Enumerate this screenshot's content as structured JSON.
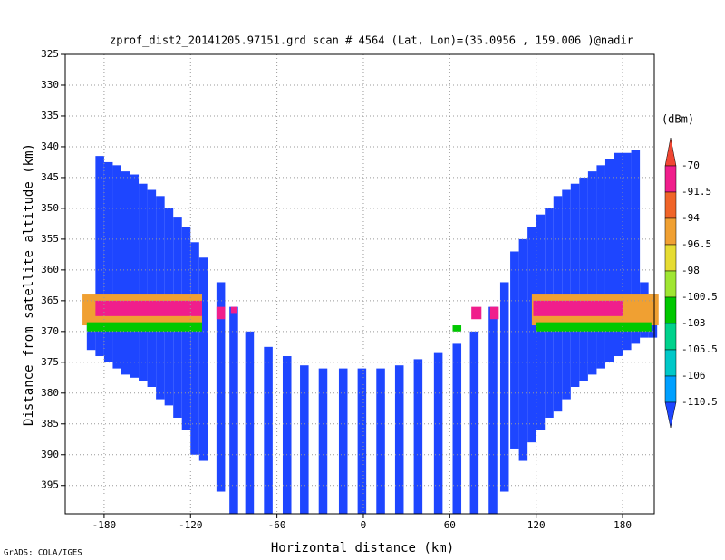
{
  "chart_data": {
    "type": "heatmap",
    "title": "zprof_dist2_20141205.97151.grd  scan # 4564  (Lat, Lon)=(35.0956 , 159.006 )@nadir",
    "xlabel": "Horizontal distance (km)",
    "ylabel": "Distance from satellite altitude (km)",
    "footnote": "GrADS: COLA/IGES",
    "xlim": [
      -207,
      202
    ],
    "ylim": [
      325,
      399.6
    ],
    "xticks": [
      -180,
      -120,
      -60,
      0,
      60,
      120,
      180
    ],
    "yticks": [
      325,
      330,
      335,
      340,
      345,
      350,
      355,
      360,
      365,
      370,
      375,
      380,
      385,
      390,
      395
    ],
    "grid": true,
    "colorbar": {
      "unit": "(dBm)",
      "levels": [
        -70,
        -91.5,
        -94,
        -96.5,
        -98,
        -100.5,
        -103,
        -105.5,
        -106,
        -110.5
      ],
      "colors": [
        "#f04632",
        "#f01e8c",
        "#f06428",
        "#f0a032",
        "#e6dc32",
        "#a0e632",
        "#00c800",
        "#00d28c",
        "#00c8c8",
        "#00a0ff",
        "#1e46ff"
      ]
    },
    "columns": {
      "value": -112,
      "x0": [
        -192,
        -186,
        -180,
        -174,
        -168,
        -162,
        -156,
        -150,
        -144,
        -138,
        -132,
        -126,
        -120,
        -114,
        -102,
        -93,
        -82,
        -69,
        -56,
        -44,
        -31,
        -17,
        -4,
        9,
        22,
        35,
        49,
        62,
        74,
        87,
        95,
        102,
        108,
        114,
        120,
        126,
        132,
        138,
        144,
        150,
        156,
        162,
        168,
        174,
        180,
        186,
        192,
        198
      ],
      "x1": [
        -186,
        -180,
        -174,
        -168,
        -162,
        -156,
        -150,
        -144,
        -138,
        -132,
        -126,
        -120,
        -114,
        -108,
        -96,
        -87,
        -76,
        -63,
        -50,
        -38,
        -25,
        -11,
        2,
        15,
        28,
        41,
        55,
        68,
        80,
        93,
        101,
        108,
        114,
        120,
        126,
        132,
        138,
        144,
        150,
        156,
        162,
        168,
        174,
        180,
        186,
        192,
        198,
        204
      ],
      "top": [
        364.5,
        341.5,
        342.5,
        343,
        344,
        344.5,
        346,
        347,
        348,
        350,
        351.5,
        353,
        355.5,
        358,
        362,
        366,
        370,
        372.5,
        374,
        375.5,
        376,
        376,
        376,
        376,
        375.5,
        374.5,
        373.5,
        372,
        370,
        366,
        362,
        357,
        355,
        353,
        351,
        350,
        348,
        347,
        346,
        345,
        344,
        343,
        342,
        341,
        341,
        340.5,
        362,
        364
      ],
      "bottom": [
        373,
        374,
        375,
        376,
        377,
        377.5,
        378,
        379,
        381,
        382,
        384,
        386,
        390,
        391,
        396,
        399.6,
        399.6,
        399.6,
        399.6,
        399.6,
        399.6,
        399.6,
        399.6,
        399.6,
        399.6,
        399.6,
        399.6,
        399.6,
        399.6,
        399.6,
        396,
        389,
        391,
        388,
        386,
        384,
        383,
        381,
        379,
        378,
        377,
        376,
        375,
        374,
        373,
        372,
        371,
        371
      ]
    },
    "bands": {
      "value": [
        -95,
        -80,
        -102,
        -95,
        -80,
        -102,
        -80,
        -80,
        -80,
        -80,
        -102
      ],
      "x0": [
        -195,
        -186,
        -192,
        117,
        118,
        120,
        -102,
        -92,
        75,
        88,
        62
      ],
      "x1": [
        -112,
        -112,
        -112,
        205,
        180,
        200,
        -96,
        -88,
        82,
        94,
        68
      ],
      "top": [
        364,
        365,
        368.5,
        364,
        365,
        368.5,
        366,
        366,
        366,
        366,
        369
      ],
      "bottom": [
        369,
        367.5,
        370,
        369,
        367.5,
        370,
        368,
        367,
        368,
        368,
        370
      ]
    }
  }
}
